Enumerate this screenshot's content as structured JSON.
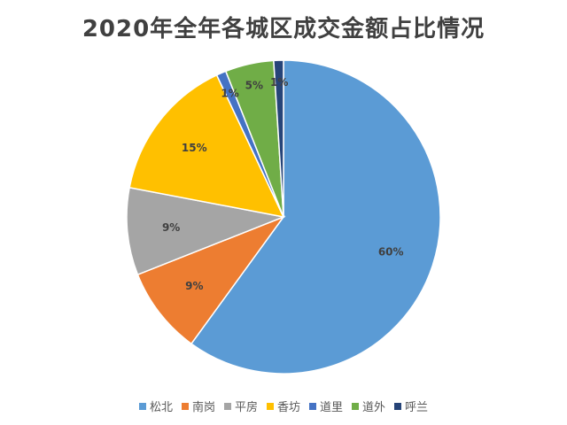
{
  "chart_data": {
    "type": "pie",
    "title": "2020年全年各城区成交金额占比情况",
    "categories": [
      "松北",
      "南岗",
      "平房",
      "香坊",
      "道里",
      "道外",
      "呼兰"
    ],
    "values": [
      60,
      9,
      9,
      15,
      1,
      5,
      1
    ],
    "data_labels": [
      "60%",
      "9%",
      "9%",
      "15%",
      "1%",
      "5%",
      "1%"
    ],
    "colors": [
      "#5b9bd5",
      "#ed7d31",
      "#a5a5a5",
      "#ffc000",
      "#4472c4",
      "#70ad47",
      "#264478"
    ],
    "start": "12 o'clock, clockwise",
    "legend_position": "bottom"
  }
}
